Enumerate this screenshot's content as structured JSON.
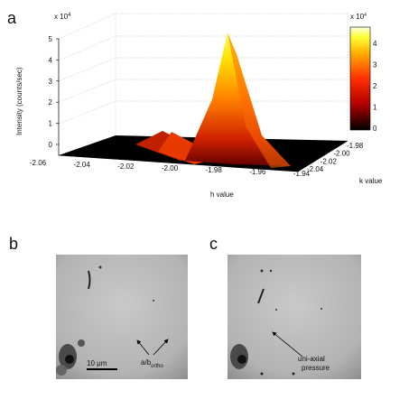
{
  "panels": {
    "a": "a",
    "b": "b",
    "c": "c"
  },
  "plot": {
    "z_exponent": {
      "base": "x 10",
      "power": "4"
    },
    "z_ticks": [
      "0",
      "1",
      "2",
      "3",
      "4",
      "5"
    ],
    "z_label": "Intensity  (counts/sec)",
    "h_ticks": [
      "-2.06",
      "-2.04",
      "-2.02",
      "-2.00",
      "-1.98",
      "-1.96",
      "-1.94"
    ],
    "h_label": "h value",
    "k_ticks": [
      "-2.04",
      "-2.02",
      "-2.00",
      "-1.98"
    ],
    "k_label": "k value",
    "colorbar_exponent": {
      "base": "x 10",
      "power": "4"
    },
    "colorbar_ticks": [
      "0",
      "1",
      "2",
      "3",
      "4"
    ]
  },
  "image_b": {
    "scale_bar": "10 μm",
    "arrow_label": {
      "main": "a/b",
      "sub": "ortho"
    }
  },
  "image_c": {
    "arrow_label": [
      "uni-axial",
      "pressure"
    ]
  }
}
